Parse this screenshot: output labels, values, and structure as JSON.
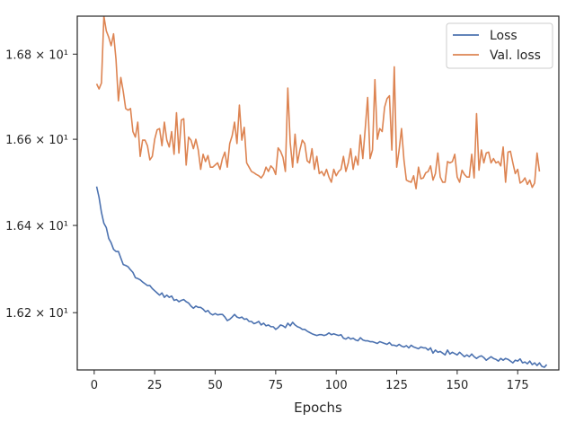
{
  "chart_data": {
    "type": "line",
    "title": "",
    "xlabel": "Epochs",
    "ylabel": "",
    "yscale": "log",
    "xlim": [
      -7,
      192
    ],
    "ylim": [
      16.07,
      16.89
    ],
    "xticks": [
      0,
      25,
      50,
      75,
      100,
      125,
      150,
      175
    ],
    "xtick_labels": [
      "0",
      "25",
      "50",
      "75",
      "100",
      "125",
      "150",
      "175"
    ],
    "yticks": [
      16.2,
      16.4,
      16.6,
      16.8
    ],
    "ytick_labels": [
      "1.62 × 10¹",
      "1.64 × 10¹",
      "1.66 × 10¹",
      "1.68 × 10¹"
    ],
    "grid": false,
    "legend": "top-right",
    "series": [
      {
        "name": "Loss",
        "color": "#4c72b0",
        "x_start": 1,
        "x_step": 1,
        "values": [
          16.49,
          16.465,
          16.43,
          16.405,
          16.395,
          16.37,
          16.36,
          16.345,
          16.34,
          16.34,
          16.325,
          16.31,
          16.308,
          16.305,
          16.298,
          16.292,
          16.28,
          16.278,
          16.275,
          16.27,
          16.266,
          16.262,
          16.262,
          16.255,
          16.25,
          16.245,
          16.24,
          16.245,
          16.235,
          16.24,
          16.235,
          16.238,
          16.228,
          16.23,
          16.225,
          16.228,
          16.23,
          16.225,
          16.222,
          16.215,
          16.21,
          16.215,
          16.212,
          16.212,
          16.208,
          16.202,
          16.205,
          16.198,
          16.195,
          16.198,
          16.195,
          16.196,
          16.196,
          16.19,
          16.182,
          16.185,
          16.19,
          16.196,
          16.19,
          16.188,
          16.19,
          16.185,
          16.186,
          16.18,
          16.18,
          16.175,
          16.177,
          16.18,
          16.172,
          16.176,
          16.17,
          16.172,
          16.168,
          16.168,
          16.162,
          16.166,
          16.172,
          16.17,
          16.166,
          16.176,
          16.17,
          16.178,
          16.172,
          16.168,
          16.166,
          16.162,
          16.162,
          16.158,
          16.155,
          16.152,
          16.15,
          16.148,
          16.15,
          16.15,
          16.148,
          16.15,
          16.154,
          16.15,
          16.152,
          16.15,
          16.148,
          16.15,
          16.142,
          16.14,
          16.144,
          16.14,
          16.142,
          16.138,
          16.136,
          16.143,
          16.138,
          16.136,
          16.136,
          16.134,
          16.134,
          16.132,
          16.13,
          16.134,
          16.132,
          16.13,
          16.128,
          16.132,
          16.126,
          16.126,
          16.124,
          16.128,
          16.124,
          16.122,
          16.125,
          16.12,
          16.126,
          16.122,
          16.12,
          16.118,
          16.122,
          16.12,
          16.12,
          16.115,
          16.12,
          16.108,
          16.115,
          16.11,
          16.112,
          16.108,
          16.104,
          16.115,
          16.106,
          16.11,
          16.107,
          16.104,
          16.11,
          16.105,
          16.1,
          16.104,
          16.1,
          16.106,
          16.1,
          16.096,
          16.1,
          16.102,
          16.098,
          16.092,
          16.096,
          16.1,
          16.096,
          16.094,
          16.09,
          16.096,
          16.092,
          16.096,
          16.094,
          16.09,
          16.086,
          16.092,
          16.09,
          16.095,
          16.086,
          16.088,
          16.084,
          16.09,
          16.082,
          16.086,
          16.08,
          16.086,
          16.078,
          16.076,
          16.082
        ]
      },
      {
        "name": "Val. loss",
        "color": "#dd8452",
        "x_start": 1,
        "x_step": 1,
        "values": [
          16.73,
          16.718,
          16.732,
          16.89,
          16.855,
          16.84,
          16.82,
          16.848,
          16.788,
          16.69,
          16.745,
          16.712,
          16.672,
          16.668,
          16.672,
          16.618,
          16.605,
          16.64,
          16.56,
          16.598,
          16.598,
          16.585,
          16.552,
          16.56,
          16.6,
          16.622,
          16.625,
          16.585,
          16.64,
          16.598,
          16.582,
          16.618,
          16.565,
          16.662,
          16.568,
          16.645,
          16.648,
          16.54,
          16.605,
          16.598,
          16.578,
          16.6,
          16.575,
          16.53,
          16.565,
          16.548,
          16.562,
          16.535,
          16.535,
          16.54,
          16.545,
          16.53,
          16.555,
          16.57,
          16.535,
          16.59,
          16.608,
          16.64,
          16.59,
          16.68,
          16.598,
          16.628,
          16.545,
          16.535,
          16.525,
          16.522,
          16.518,
          16.515,
          16.51,
          16.518,
          16.535,
          16.525,
          16.538,
          16.532,
          16.518,
          16.58,
          16.572,
          16.558,
          16.525,
          16.72,
          16.592,
          16.535,
          16.612,
          16.545,
          16.575,
          16.598,
          16.59,
          16.55,
          16.545,
          16.578,
          16.53,
          16.56,
          16.52,
          16.525,
          16.515,
          16.53,
          16.512,
          16.5,
          16.53,
          16.515,
          16.525,
          16.53,
          16.56,
          16.525,
          16.545,
          16.578,
          16.53,
          16.56,
          16.54,
          16.61,
          16.555,
          16.625,
          16.698,
          16.555,
          16.575,
          16.74,
          16.6,
          16.625,
          16.618,
          16.675,
          16.695,
          16.702,
          16.575,
          16.77,
          16.535,
          16.575,
          16.625,
          16.552,
          16.505,
          16.502,
          16.5,
          16.515,
          16.485,
          16.535,
          16.508,
          16.51,
          16.522,
          16.525,
          16.538,
          16.505,
          16.52,
          16.568,
          16.512,
          16.5,
          16.5,
          16.548,
          16.545,
          16.548,
          16.565,
          16.512,
          16.5,
          16.528,
          16.518,
          16.512,
          16.512,
          16.565,
          16.51,
          16.66,
          16.528,
          16.575,
          16.545,
          16.568,
          16.57,
          16.545,
          16.555,
          16.545,
          16.548,
          16.538,
          16.582,
          16.5,
          16.57,
          16.572,
          16.545,
          16.52,
          16.53,
          16.498,
          16.502,
          16.51,
          16.495,
          16.505,
          16.488,
          16.498,
          16.568,
          16.525
        ]
      }
    ]
  }
}
